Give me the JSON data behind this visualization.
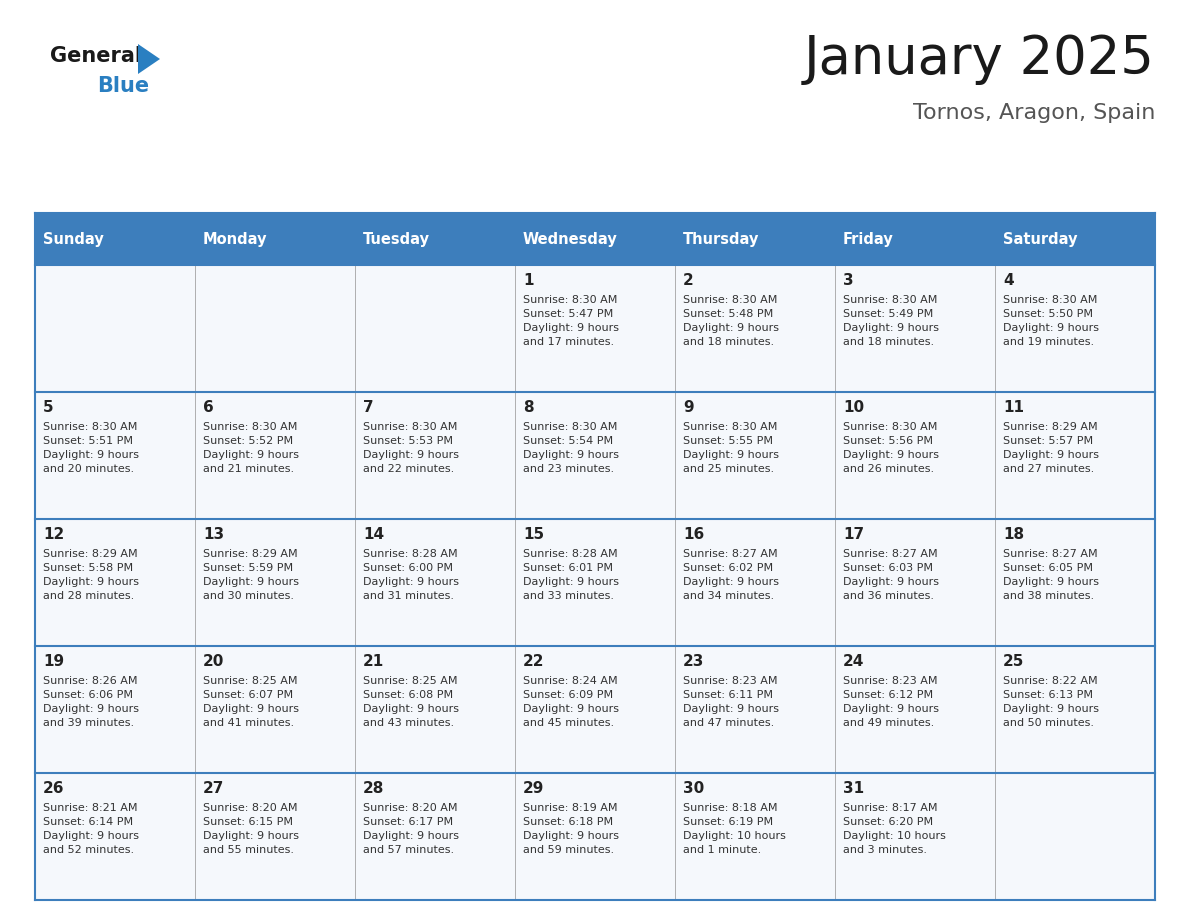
{
  "title": "January 2025",
  "subtitle": "Tornos, Aragon, Spain",
  "header_bg": "#3d7ebc",
  "header_text_color": "#ffffff",
  "cell_bg": "#f5f8fc",
  "grid_line_color": "#3d7ebc",
  "grid_line_thin": "#aaaaaa",
  "day_num_color": "#222222",
  "text_color": "#333333",
  "days_of_week": [
    "Sunday",
    "Monday",
    "Tuesday",
    "Wednesday",
    "Thursday",
    "Friday",
    "Saturday"
  ],
  "weeks": [
    [
      {
        "day": null,
        "info": null
      },
      {
        "day": null,
        "info": null
      },
      {
        "day": null,
        "info": null
      },
      {
        "day": 1,
        "info": "Sunrise: 8:30 AM\nSunset: 5:47 PM\nDaylight: 9 hours\nand 17 minutes."
      },
      {
        "day": 2,
        "info": "Sunrise: 8:30 AM\nSunset: 5:48 PM\nDaylight: 9 hours\nand 18 minutes."
      },
      {
        "day": 3,
        "info": "Sunrise: 8:30 AM\nSunset: 5:49 PM\nDaylight: 9 hours\nand 18 minutes."
      },
      {
        "day": 4,
        "info": "Sunrise: 8:30 AM\nSunset: 5:50 PM\nDaylight: 9 hours\nand 19 minutes."
      }
    ],
    [
      {
        "day": 5,
        "info": "Sunrise: 8:30 AM\nSunset: 5:51 PM\nDaylight: 9 hours\nand 20 minutes."
      },
      {
        "day": 6,
        "info": "Sunrise: 8:30 AM\nSunset: 5:52 PM\nDaylight: 9 hours\nand 21 minutes."
      },
      {
        "day": 7,
        "info": "Sunrise: 8:30 AM\nSunset: 5:53 PM\nDaylight: 9 hours\nand 22 minutes."
      },
      {
        "day": 8,
        "info": "Sunrise: 8:30 AM\nSunset: 5:54 PM\nDaylight: 9 hours\nand 23 minutes."
      },
      {
        "day": 9,
        "info": "Sunrise: 8:30 AM\nSunset: 5:55 PM\nDaylight: 9 hours\nand 25 minutes."
      },
      {
        "day": 10,
        "info": "Sunrise: 8:30 AM\nSunset: 5:56 PM\nDaylight: 9 hours\nand 26 minutes."
      },
      {
        "day": 11,
        "info": "Sunrise: 8:29 AM\nSunset: 5:57 PM\nDaylight: 9 hours\nand 27 minutes."
      }
    ],
    [
      {
        "day": 12,
        "info": "Sunrise: 8:29 AM\nSunset: 5:58 PM\nDaylight: 9 hours\nand 28 minutes."
      },
      {
        "day": 13,
        "info": "Sunrise: 8:29 AM\nSunset: 5:59 PM\nDaylight: 9 hours\nand 30 minutes."
      },
      {
        "day": 14,
        "info": "Sunrise: 8:28 AM\nSunset: 6:00 PM\nDaylight: 9 hours\nand 31 minutes."
      },
      {
        "day": 15,
        "info": "Sunrise: 8:28 AM\nSunset: 6:01 PM\nDaylight: 9 hours\nand 33 minutes."
      },
      {
        "day": 16,
        "info": "Sunrise: 8:27 AM\nSunset: 6:02 PM\nDaylight: 9 hours\nand 34 minutes."
      },
      {
        "day": 17,
        "info": "Sunrise: 8:27 AM\nSunset: 6:03 PM\nDaylight: 9 hours\nand 36 minutes."
      },
      {
        "day": 18,
        "info": "Sunrise: 8:27 AM\nSunset: 6:05 PM\nDaylight: 9 hours\nand 38 minutes."
      }
    ],
    [
      {
        "day": 19,
        "info": "Sunrise: 8:26 AM\nSunset: 6:06 PM\nDaylight: 9 hours\nand 39 minutes."
      },
      {
        "day": 20,
        "info": "Sunrise: 8:25 AM\nSunset: 6:07 PM\nDaylight: 9 hours\nand 41 minutes."
      },
      {
        "day": 21,
        "info": "Sunrise: 8:25 AM\nSunset: 6:08 PM\nDaylight: 9 hours\nand 43 minutes."
      },
      {
        "day": 22,
        "info": "Sunrise: 8:24 AM\nSunset: 6:09 PM\nDaylight: 9 hours\nand 45 minutes."
      },
      {
        "day": 23,
        "info": "Sunrise: 8:23 AM\nSunset: 6:11 PM\nDaylight: 9 hours\nand 47 minutes."
      },
      {
        "day": 24,
        "info": "Sunrise: 8:23 AM\nSunset: 6:12 PM\nDaylight: 9 hours\nand 49 minutes."
      },
      {
        "day": 25,
        "info": "Sunrise: 8:22 AM\nSunset: 6:13 PM\nDaylight: 9 hours\nand 50 minutes."
      }
    ],
    [
      {
        "day": 26,
        "info": "Sunrise: 8:21 AM\nSunset: 6:14 PM\nDaylight: 9 hours\nand 52 minutes."
      },
      {
        "day": 27,
        "info": "Sunrise: 8:20 AM\nSunset: 6:15 PM\nDaylight: 9 hours\nand 55 minutes."
      },
      {
        "day": 28,
        "info": "Sunrise: 8:20 AM\nSunset: 6:17 PM\nDaylight: 9 hours\nand 57 minutes."
      },
      {
        "day": 29,
        "info": "Sunrise: 8:19 AM\nSunset: 6:18 PM\nDaylight: 9 hours\nand 59 minutes."
      },
      {
        "day": 30,
        "info": "Sunrise: 8:18 AM\nSunset: 6:19 PM\nDaylight: 10 hours\nand 1 minute."
      },
      {
        "day": 31,
        "info": "Sunrise: 8:17 AM\nSunset: 6:20 PM\nDaylight: 10 hours\nand 3 minutes."
      },
      {
        "day": null,
        "info": null
      }
    ]
  ],
  "logo_general_color": "#1a1a1a",
  "logo_blue_color": "#2a7fc1",
  "title_color": "#1a1a1a",
  "subtitle_color": "#555555"
}
